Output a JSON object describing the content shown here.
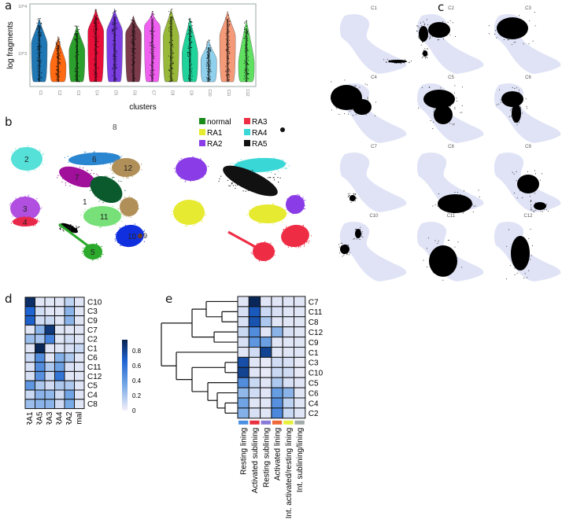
{
  "panels": {
    "a": "a",
    "b": "b",
    "c": "c",
    "d": "d",
    "e": "e"
  },
  "chart_data": [
    {
      "panel": "a",
      "type": "violin",
      "title": "",
      "xlabel": "clusters",
      "ylabel": "log fragments",
      "yscale": "log",
      "yticks": [
        "10^4",
        "10^3"
      ],
      "categories": [
        "C1",
        "C2",
        "C3",
        "C4",
        "C5",
        "C6",
        "C7",
        "C8",
        "C9",
        "C10",
        "C11",
        "C12"
      ],
      "colors": [
        "#1f77b4",
        "#ff6a13",
        "#2ca02c",
        "#e8103a",
        "#7b3fe4",
        "#7b3b4a",
        "#f060f0",
        "#98b83a",
        "#1fd39a",
        "#8fd0ec",
        "#f59a78",
        "#5fe060"
      ],
      "approx_max_log": [
        3.75,
        3.35,
        3.6,
        3.95,
        3.95,
        3.8,
        3.9,
        3.95,
        3.75,
        3.3,
        3.9,
        3.7
      ],
      "approx_widest_log": [
        3.2,
        2.75,
        3.05,
        3.45,
        3.45,
        3.4,
        3.55,
        3.35,
        3.0,
        2.85,
        3.35,
        2.8
      ]
    },
    {
      "panel": "b",
      "type": "scatter",
      "subtype": "UMAP by cluster",
      "cluster_labels": [
        "0",
        "1",
        "2",
        "3",
        "4",
        "5",
        "6",
        "7",
        "8",
        "9",
        "10",
        "11",
        "12"
      ],
      "cluster_colors": {
        "0": "#000000",
        "1": "#e6e62a",
        "2": "#55e0d8",
        "3": "#b04fe0",
        "4": "#e8284a",
        "5": "#2caa2c",
        "6": "#2a86d0",
        "7": "#a0109a",
        "8": "#888888",
        "9": "#6b3a1a",
        "10": "#1030e0",
        "11": "#78e078",
        "12": "#b09058"
      }
    },
    {
      "panel": "b2",
      "type": "scatter",
      "subtype": "UMAP by sample",
      "legend": [
        {
          "label": "normal",
          "color": "#1a8a1a"
        },
        {
          "label": "RA1",
          "color": "#e6ea30"
        },
        {
          "label": "RA2",
          "color": "#8a3ce6"
        },
        {
          "label": "RA3",
          "color": "#ee2d45"
        },
        {
          "label": "RA4",
          "color": "#3ad7d7"
        },
        {
          "label": "RA5",
          "color": "#111111"
        }
      ]
    },
    {
      "panel": "c",
      "type": "scatter",
      "subtype": "UMAP highlight per cluster",
      "facets": [
        "C1",
        "C2",
        "C3",
        "C4",
        "C5",
        "C6",
        "C7",
        "C8",
        "C9",
        "C10",
        "C11",
        "C12"
      ],
      "background_color": "#dfe3f5",
      "highlight_color": "#000000"
    },
    {
      "panel": "d",
      "type": "heatmap",
      "rows": [
        "C10",
        "C3",
        "C9",
        "C7",
        "C2",
        "C1",
        "C6",
        "C11",
        "C12",
        "C5",
        "C4",
        "C8"
      ],
      "columns": [
        "RA1",
        "RA5",
        "RA3",
        "RA4",
        "RA2",
        "normal"
      ],
      "values": [
        [
          0.95,
          0.05,
          0.05,
          0.05,
          0.15,
          0.05
        ],
        [
          0.7,
          0.1,
          0.05,
          0.05,
          0.3,
          0.05
        ],
        [
          0.72,
          0.1,
          0.12,
          0.05,
          0.3,
          0.05
        ],
        [
          0.05,
          0.3,
          0.9,
          0.05,
          0.05,
          0.05
        ],
        [
          0.25,
          0.22,
          0.55,
          0.05,
          0.1,
          0.05
        ],
        [
          0.05,
          0.98,
          0.05,
          0.05,
          0.08,
          0.12
        ],
        [
          0.12,
          0.5,
          0.05,
          0.32,
          0.2,
          0.05
        ],
        [
          0.08,
          0.5,
          0.2,
          0.4,
          0.08,
          0.05
        ],
        [
          0.08,
          0.48,
          0.12,
          0.62,
          0.05,
          0.05
        ],
        [
          0.45,
          0.2,
          0.1,
          0.2,
          0.2,
          0.05
        ],
        [
          0.12,
          0.3,
          0.28,
          0.1,
          0.38,
          0.05
        ],
        [
          0.25,
          0.3,
          0.3,
          0.1,
          0.35,
          0.05
        ]
      ],
      "colorbar": {
        "min": 0,
        "max": 1,
        "ticks": [
          "0",
          "0.2",
          "0.4",
          "0.6",
          "0.8"
        ]
      }
    },
    {
      "panel": "e",
      "type": "heatmap",
      "rows": [
        "C7",
        "C11",
        "C8",
        "C12",
        "C9",
        "C1",
        "C3",
        "C10",
        "C5",
        "C6",
        "C4",
        "C2"
      ],
      "columns": [
        "Resting lining",
        "Activated sublining",
        "Resting sublining",
        "Activated lining",
        "Int. activated/resting lining",
        "Int. sublining/lining"
      ],
      "column_colors": [
        "#4a90e2",
        "#e8313f",
        "#8a78d8",
        "#f0683a",
        "#e6f03a",
        "#a0aaa8"
      ],
      "values": [
        [
          0.05,
          0.98,
          0.05,
          0.05,
          0.05,
          0.05
        ],
        [
          0.08,
          0.75,
          0.12,
          0.08,
          0.05,
          0.05
        ],
        [
          0.08,
          0.78,
          0.2,
          0.05,
          0.05,
          0.05
        ],
        [
          0.12,
          0.5,
          0.05,
          0.3,
          0.08,
          0.05
        ],
        [
          0.08,
          0.45,
          0.4,
          0.05,
          0.05,
          0.05
        ],
        [
          0.05,
          0.1,
          0.85,
          0.05,
          0.05,
          0.05
        ],
        [
          0.8,
          0.05,
          0.03,
          0.1,
          0.08,
          0.03
        ],
        [
          0.85,
          0.05,
          0.03,
          0.12,
          0.1,
          0.03
        ],
        [
          0.5,
          0.12,
          0.05,
          0.2,
          0.08,
          0.05
        ],
        [
          0.28,
          0.1,
          0.05,
          0.42,
          0.3,
          0.05
        ],
        [
          0.38,
          0.05,
          0.05,
          0.48,
          0.15,
          0.05
        ],
        [
          0.32,
          0.08,
          0.05,
          0.52,
          0.12,
          0.05
        ]
      ],
      "dendrogram": "rows clustered"
    }
  ]
}
